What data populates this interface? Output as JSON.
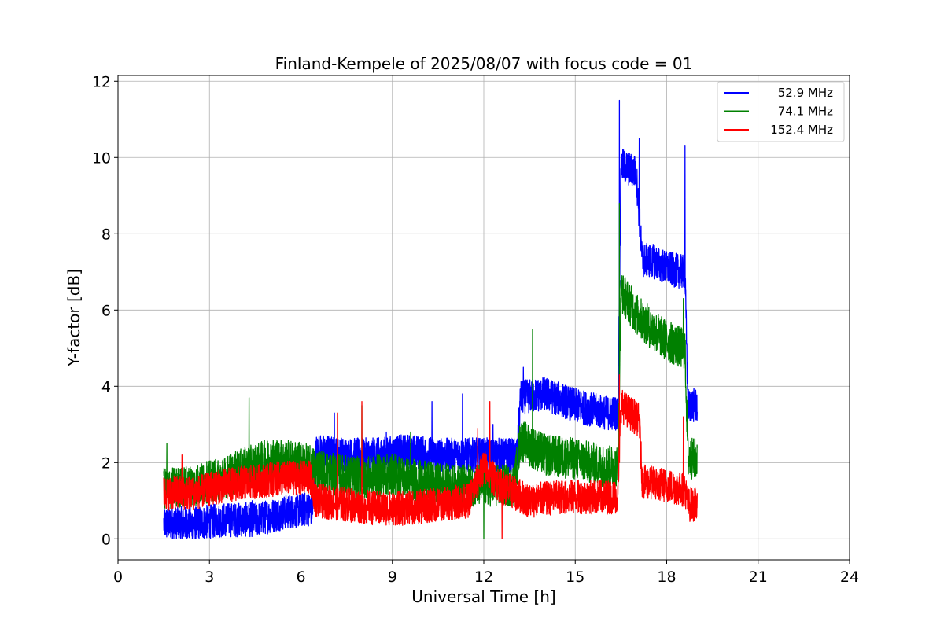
{
  "chart_data": {
    "type": "line",
    "title": "Finland-Kempele of 2025/08/07 with focus code = 01",
    "xlabel": "Universal Time [h]",
    "ylabel": "Y-factor [dB]",
    "xlim": [
      0,
      24
    ],
    "ylim": [
      -0.55,
      12.15
    ],
    "xticks": [
      0,
      3,
      6,
      9,
      12,
      15,
      18,
      21,
      24
    ],
    "yticks": [
      0,
      2,
      4,
      6,
      8,
      10,
      12
    ],
    "xtick_labels": [
      "0",
      "3",
      "6",
      "9",
      "12",
      "15",
      "18",
      "21",
      "24"
    ],
    "ytick_labels": [
      "0",
      "2",
      "4",
      "6",
      "8",
      "10",
      "12"
    ],
    "grid": true,
    "legend_position": "top-right",
    "series": [
      {
        "name": "52.9 MHz",
        "color": "#0000ff",
        "x": [
          1.5,
          2.5,
          3.5,
          4.5,
          5.5,
          6.4,
          6.5,
          7.5,
          8.5,
          9.5,
          10.5,
          11.5,
          12.5,
          13.1,
          13.2,
          14.0,
          15.0,
          16.0,
          16.4,
          16.5,
          17.0,
          17.2,
          17.5,
          18.0,
          18.5,
          18.6,
          18.7,
          19.0
        ],
        "y": [
          0.4,
          0.4,
          0.5,
          0.5,
          0.7,
          0.8,
          2.3,
          2.2,
          2.2,
          2.3,
          2.2,
          2.2,
          2.2,
          2.2,
          3.7,
          3.8,
          3.5,
          3.3,
          3.3,
          9.8,
          9.6,
          7.3,
          7.3,
          7.1,
          7.0,
          7.0,
          3.5,
          3.5
        ],
        "noise": 0.45,
        "spikes": [
          [
            4.4,
            1.0
          ],
          [
            7.1,
            3.3
          ],
          [
            8.8,
            2.8
          ],
          [
            10.3,
            3.6
          ],
          [
            11.3,
            3.8
          ],
          [
            12.3,
            3.0
          ],
          [
            13.3,
            4.5
          ],
          [
            14.2,
            4.1
          ],
          [
            16.45,
            11.5
          ],
          [
            17.1,
            10.5
          ],
          [
            18.6,
            10.3
          ]
        ]
      },
      {
        "name": "74.1 MHz",
        "color": "#008000",
        "x": [
          1.5,
          2.5,
          3.5,
          4.0,
          5.0,
          6.0,
          7.0,
          8.0,
          9.0,
          10.0,
          11.0,
          12.0,
          12.5,
          13.0,
          13.2,
          14.0,
          15.0,
          16.0,
          16.4,
          16.5,
          17.0,
          17.5,
          18.0,
          18.5,
          18.6,
          18.7,
          19.0
        ],
        "y": [
          1.3,
          1.4,
          1.6,
          1.8,
          2.1,
          2.0,
          1.7,
          1.6,
          1.7,
          1.5,
          1.4,
          1.4,
          1.4,
          1.4,
          2.6,
          2.2,
          2.1,
          1.9,
          1.9,
          6.5,
          5.9,
          5.5,
          5.2,
          5.0,
          5.0,
          2.1,
          2.1
        ],
        "noise": 0.55,
        "spikes": [
          [
            1.6,
            2.5
          ],
          [
            4.3,
            3.7
          ],
          [
            8.0,
            3.5
          ],
          [
            9.6,
            2.8
          ],
          [
            12.0,
            0.0
          ],
          [
            13.6,
            5.5
          ],
          [
            16.45,
            8.8
          ],
          [
            18.55,
            6.3
          ]
        ]
      },
      {
        "name": "152.4 MHz",
        "color": "#ff0000",
        "x": [
          1.5,
          2.5,
          3.5,
          4.5,
          5.5,
          6.3,
          6.5,
          7.5,
          8.5,
          9.5,
          10.5,
          11.5,
          12.0,
          12.5,
          13.5,
          14.5,
          15.5,
          16.3,
          16.4,
          16.5,
          17.1,
          17.2,
          18.0,
          18.5,
          18.6,
          18.7,
          19.0
        ],
        "y": [
          1.2,
          1.2,
          1.4,
          1.5,
          1.6,
          1.6,
          1.0,
          0.9,
          0.8,
          0.8,
          0.9,
          1.0,
          1.9,
          1.4,
          1.0,
          1.1,
          1.1,
          1.1,
          1.1,
          3.5,
          3.1,
          1.5,
          1.4,
          1.3,
          1.3,
          0.9,
          0.9
        ],
        "noise": 0.45,
        "spikes": [
          [
            2.1,
            2.2
          ],
          [
            7.2,
            3.3
          ],
          [
            8.0,
            3.6
          ],
          [
            11.8,
            2.9
          ],
          [
            12.2,
            3.6
          ],
          [
            12.6,
            0.0
          ],
          [
            16.45,
            4.3
          ],
          [
            18.55,
            3.2
          ]
        ]
      }
    ]
  }
}
